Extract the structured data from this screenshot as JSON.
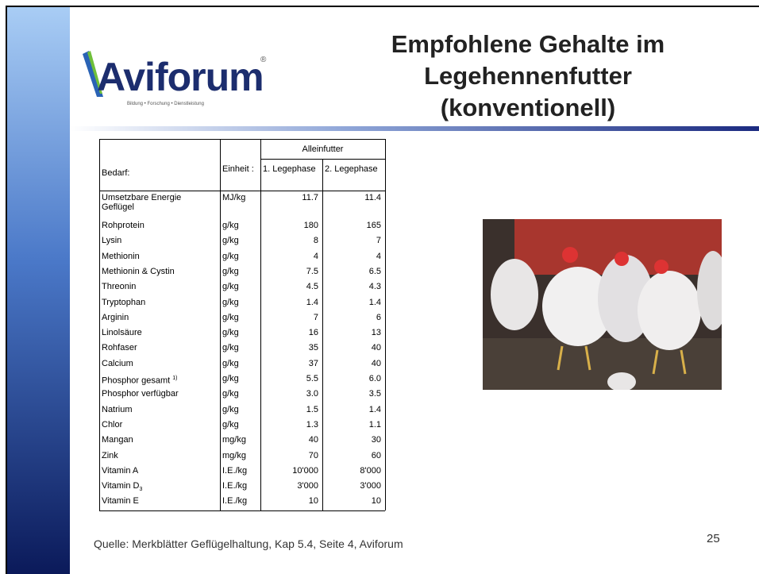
{
  "header": {
    "logo": {
      "name": "Aviforum",
      "tagline": "Bildung • Forschung • Dienstleistung"
    },
    "title": [
      "Empfohlene Gehalte im",
      "Legehennenfutter",
      "(konventionell)"
    ]
  },
  "table": {
    "group_header": "Alleinfutter",
    "columns": [
      "Bedarf:",
      "Einheit :",
      "1. Legephase",
      "2. Legephase"
    ],
    "rows": [
      [
        "Umsetzbare Energie Geflügel",
        "MJ/kg",
        "11.7",
        "11.4"
      ],
      [
        "Rohprotein",
        "g/kg",
        "180",
        "165"
      ],
      [
        "Lysin",
        "g/kg",
        "8",
        "7"
      ],
      [
        "Methionin",
        "g/kg",
        "4",
        "4"
      ],
      [
        "Methionin & Cystin",
        "g/kg",
        "7.5",
        "6.5"
      ],
      [
        "Threonin",
        "g/kg",
        "4.5",
        "4.3"
      ],
      [
        "Tryptophan",
        "g/kg",
        "1.4",
        "1.4"
      ],
      [
        "Arginin",
        "g/kg",
        "7",
        "6"
      ],
      [
        "Linolsäure",
        "g/kg",
        "16",
        "13"
      ],
      [
        "Rohfaser",
        "g/kg",
        "35",
        "40"
      ],
      [
        "Calcium",
        "g/kg",
        "37",
        "40"
      ],
      [
        {
          "text": "Phosphor gesamt ",
          "sup": "1)"
        },
        "g/kg",
        "5.5",
        "6.0"
      ],
      [
        "Phosphor verfügbar",
        "g/kg",
        "3.0",
        "3.5"
      ],
      [
        "Natrium",
        "g/kg",
        "1.5",
        "1.4"
      ],
      [
        "Chlor",
        "g/kg",
        "1.3",
        "1.1"
      ],
      [
        "Mangan",
        "mg/kg",
        "40",
        "30"
      ],
      [
        "Zink",
        "mg/kg",
        "70",
        "60"
      ],
      [
        "Vitamin A",
        "I.E./kg",
        "10'000",
        "8'000"
      ],
      [
        {
          "text": "Vitamin D",
          "sub": "3"
        },
        "I.E./kg",
        "3'000",
        "3'000"
      ],
      [
        "Vitamin E",
        "I.E./kg",
        "10",
        "10"
      ]
    ]
  },
  "footer": {
    "source": "Quelle: Merkblätter Geflügelhaltung, Kap 5.4, Seite 4, Aviforum",
    "page": "25"
  }
}
